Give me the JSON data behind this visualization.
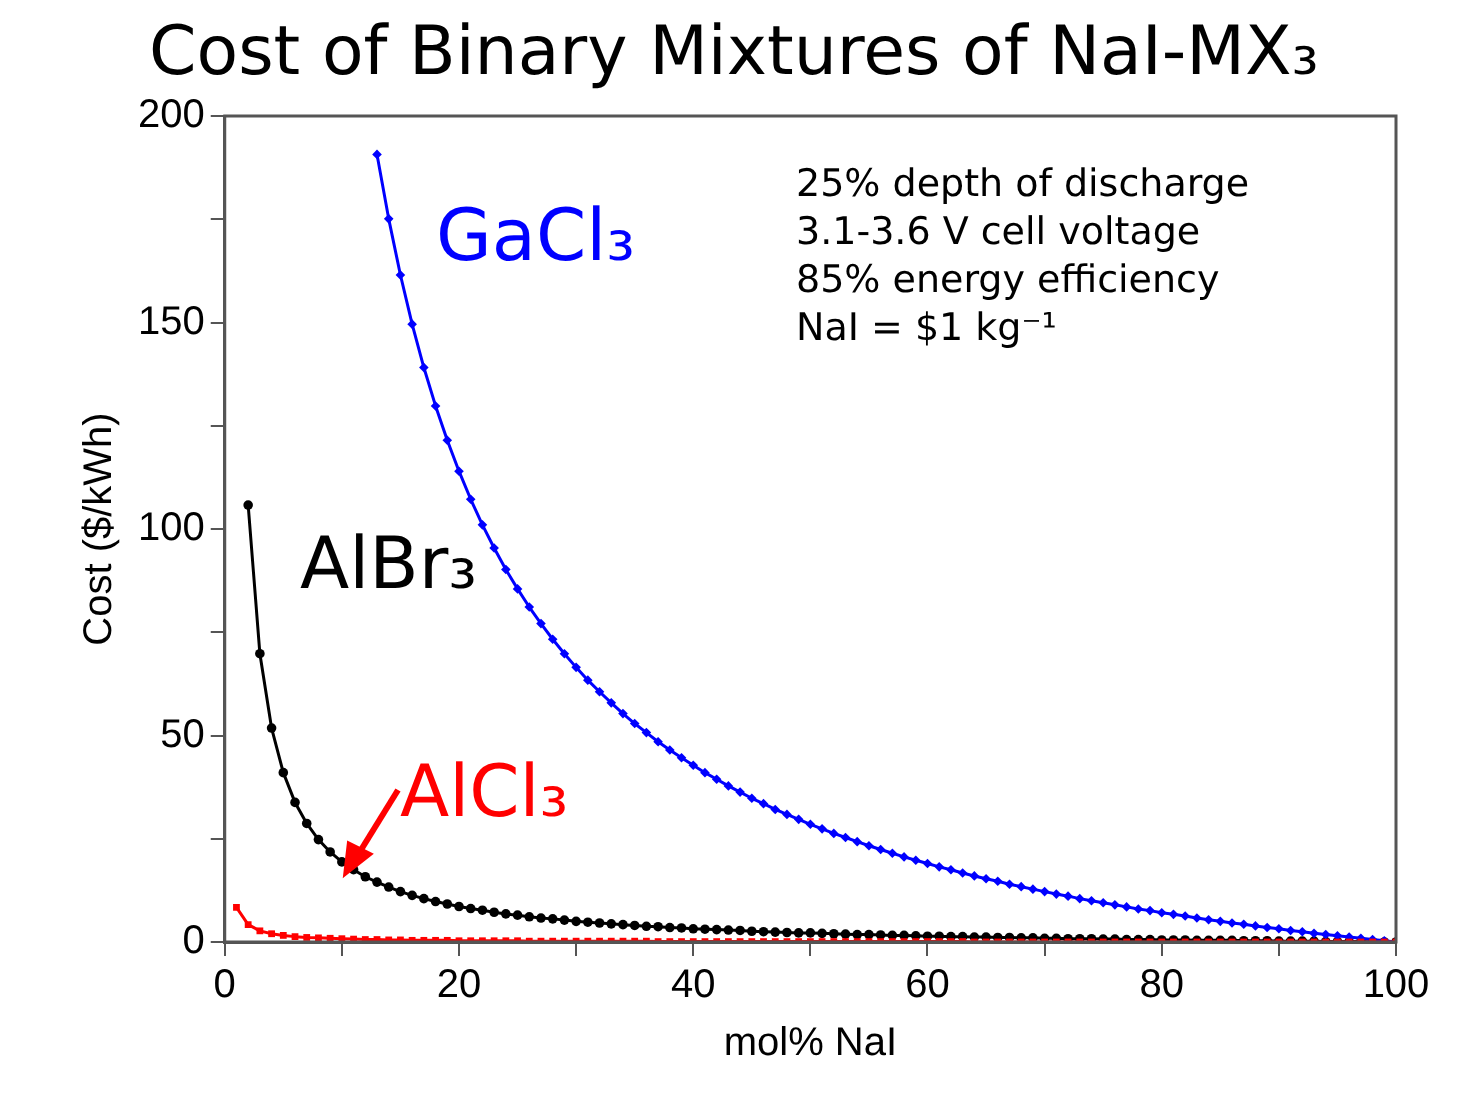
{
  "chart_data": {
    "type": "line",
    "title": "Cost of Binary Mixtures of NaI-MX₃",
    "xlabel": "mol% NaI",
    "ylabel": "Cost ($/kWh)",
    "annotations": [
      "25% depth of discharge",
      "3.1-3.6 V cell voltage",
      "85% energy efficiency",
      "NaI = $1 kg⁻¹"
    ],
    "x": [
      1,
      2,
      3,
      4,
      5,
      6,
      7,
      8,
      9,
      10,
      11,
      12,
      13,
      14,
      15,
      16,
      17,
      18,
      19,
      20,
      21,
      22,
      23,
      24,
      25,
      26,
      27,
      28,
      29,
      30,
      31,
      32,
      33,
      34,
      35,
      36,
      37,
      38,
      39,
      40,
      41,
      42,
      43,
      44,
      45,
      46,
      47,
      48,
      49,
      50,
      51,
      52,
      53,
      54,
      55,
      56,
      57,
      58,
      59,
      60,
      61,
      62,
      63,
      64,
      65,
      66,
      67,
      68,
      69,
      70,
      71,
      72,
      73,
      74,
      75,
      76,
      77,
      78,
      79,
      80,
      81,
      82,
      83,
      84,
      85,
      86,
      87,
      88,
      89,
      90,
      91,
      92,
      93,
      94,
      95,
      96,
      97,
      98,
      99,
      100
    ],
    "xlim": [
      0,
      100
    ],
    "xticks": [
      0,
      {
        "value": 10,
        "label": null
      },
      20,
      {
        "value": 30,
        "label": null
      },
      40,
      {
        "value": 50,
        "label": null
      },
      60,
      {
        "value": 70,
        "label": null
      },
      80,
      {
        "value": 90,
        "label": null
      },
      100
    ],
    "ylim": [
      0,
      200
    ],
    "yticks": [
      0,
      {
        "value": 25,
        "label": null
      },
      50,
      {
        "value": 75,
        "label": null
      },
      100,
      {
        "value": 125,
        "label": null
      },
      150,
      {
        "value": 175,
        "label": null
      },
      200
    ],
    "series": [
      {
        "name": "GaCl₃",
        "color": "#0000ff",
        "marker": "diamond",
        "values": [
          null,
          null,
          null,
          null,
          null,
          null,
          null,
          null,
          null,
          null,
          null,
          null,
          190.7,
          175.1,
          161.5,
          149.6,
          139.1,
          129.8,
          121.5,
          114,
          107.2,
          101.0,
          95.4,
          90.2,
          85.5,
          81.1,
          77.1,
          73.3,
          69.8,
          66.5,
          63.4,
          60.6,
          57.9,
          55.3,
          52.9,
          50.7,
          48.5,
          46.5,
          44.6,
          42.8,
          41.0,
          39.4,
          37.8,
          36.3,
          34.8,
          33.5,
          32.1,
          30.9,
          29.7,
          28.5,
          27.4,
          26.3,
          25.3,
          24.3,
          23.3,
          22.4,
          21.5,
          20.6,
          19.8,
          19.0,
          18.2,
          17.5,
          16.7,
          16.0,
          15.3,
          14.7,
          14.0,
          13.4,
          12.8,
          12.2,
          11.6,
          11.1,
          10.5,
          10.0,
          9.5,
          9.0,
          8.5,
          8.0,
          7.6,
          7.1,
          6.7,
          6.3,
          5.8,
          5.4,
          5.0,
          4.6,
          4.3,
          3.9,
          3.5,
          3.2,
          2.8,
          2.5,
          2.1,
          1.8,
          1.5,
          1.2,
          0.9,
          0.6,
          0.3,
          0
        ]
      },
      {
        "name": "AlBr₃",
        "color": "#000000",
        "marker": "circle",
        "values": [
          null,
          105.8,
          69.8,
          51.8,
          41.0,
          33.8,
          28.7,
          24.8,
          21.8,
          19.4,
          17.5,
          15.8,
          14.5,
          13.3,
          12.2,
          11.3,
          10.5,
          9.8,
          9.2,
          8.6,
          8.1,
          7.7,
          7.2,
          6.8,
          6.5,
          6.1,
          5.8,
          5.6,
          5.3,
          5.0,
          4.8,
          4.6,
          4.4,
          4.2,
          4.0,
          3.8,
          3.7,
          3.5,
          3.4,
          3.2,
          3.1,
          3.0,
          2.9,
          2.8,
          2.6,
          2.5,
          2.4,
          2.3,
          2.2,
          2.2,
          2.1,
          2.0,
          1.9,
          1.8,
          1.8,
          1.7,
          1.6,
          1.6,
          1.5,
          1.4,
          1.4,
          1.3,
          1.3,
          1.2,
          1.2,
          1.1,
          1.1,
          1.0,
          1.0,
          0.9,
          0.9,
          0.8,
          0.8,
          0.8,
          0.7,
          0.7,
          0.6,
          0.6,
          0.6,
          0.5,
          0.5,
          0.5,
          0.4,
          0.4,
          0.4,
          0.4,
          0.3,
          0.3,
          0.3,
          0.2,
          0.2,
          0.2,
          0.2,
          0.1,
          0.1,
          0.1,
          0.1,
          0,
          0,
          0
        ]
      },
      {
        "name": "AlCl₃",
        "color": "#ff0000",
        "marker": "square",
        "values": [
          8.4,
          4.2,
          2.7,
          2.0,
          1.6,
          1.3,
          1.1,
          1.0,
          0.9,
          0.8,
          0.7,
          0.6,
          0.6,
          0.5,
          0.5,
          0.4,
          0.4,
          0.4,
          0.4,
          0.3,
          0.3,
          0.3,
          0.3,
          0.3,
          0.3,
          0.2,
          0.2,
          0.2,
          0.2,
          0.2,
          0.2,
          0.2,
          0.2,
          0.2,
          0.2,
          0.2,
          0.1,
          0.1,
          0.1,
          0.1,
          0.1,
          0.1,
          0.1,
          0.1,
          0.1,
          0.1,
          0.1,
          0.1,
          0.1,
          0.1,
          0.1,
          0.1,
          0.1,
          0.1,
          0.1,
          0.1,
          0.1,
          0.1,
          0.1,
          0.1,
          0.1,
          0.1,
          0.1,
          0,
          0,
          0,
          0,
          0,
          0,
          0,
          0,
          0,
          0,
          0,
          0,
          0,
          0,
          0,
          0,
          0,
          0,
          0,
          0,
          0,
          0,
          0,
          0,
          0,
          0,
          0,
          0,
          0,
          0,
          0,
          0,
          0,
          0,
          0,
          0,
          0
        ]
      }
    ]
  }
}
